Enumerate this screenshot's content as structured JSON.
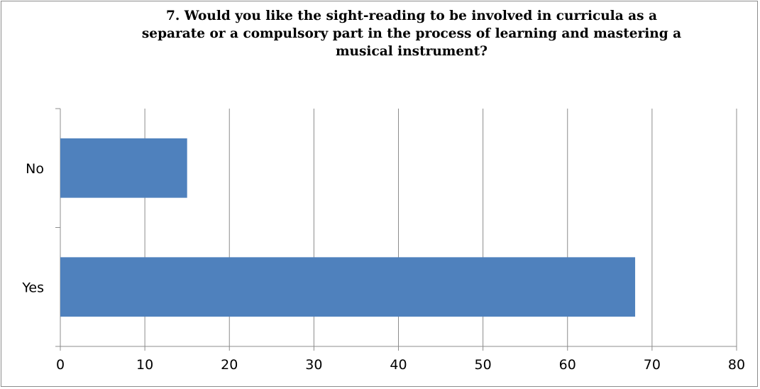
{
  "chart_data": {
    "type": "bar",
    "orientation": "horizontal",
    "title": "7. Would you like the sight-reading to be involved in curricula  as a\nseparate  or a compulsory  part in the process of  learning and mastering a\nmusical instrument?",
    "categories": [
      "No",
      "Yes"
    ],
    "values": [
      15,
      68
    ],
    "xlim": [
      0,
      80
    ],
    "xticks": [
      0,
      10,
      20,
      30,
      40,
      50,
      60,
      70,
      80
    ],
    "grid": true,
    "legend": "none",
    "bar_color": "#4f81bd"
  }
}
